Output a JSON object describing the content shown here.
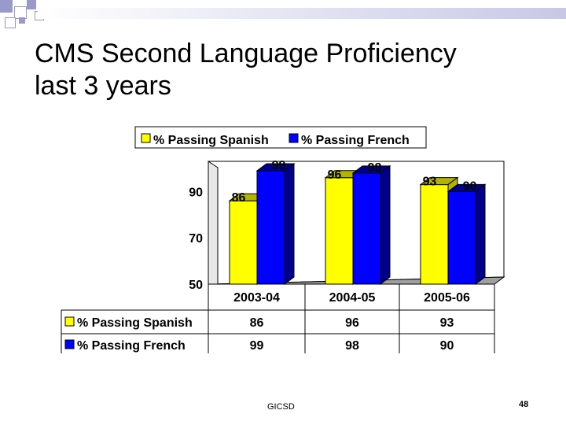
{
  "slide": {
    "title_line1": "CMS Second Language Proficiency",
    "title_line2": "last 3 years",
    "footer": "GICSD",
    "page_number": "48"
  },
  "colors": {
    "spanish": "#ffff00",
    "spanish_side": "#b3b300",
    "french": "#0000ff",
    "french_side": "#00008a",
    "accent_square": "#9999cc"
  },
  "chart_data": {
    "type": "bar",
    "categories": [
      "2003-04",
      "2004-05",
      "2005-06"
    ],
    "series": [
      {
        "name": "% Passing Spanish",
        "values": [
          86,
          96,
          93
        ]
      },
      {
        "name": "% Passing French",
        "values": [
          99,
          98,
          90
        ]
      }
    ],
    "yticks": [
      "50",
      "70",
      "90"
    ],
    "ylim": [
      50,
      100
    ],
    "legend": "top",
    "grid": false
  }
}
